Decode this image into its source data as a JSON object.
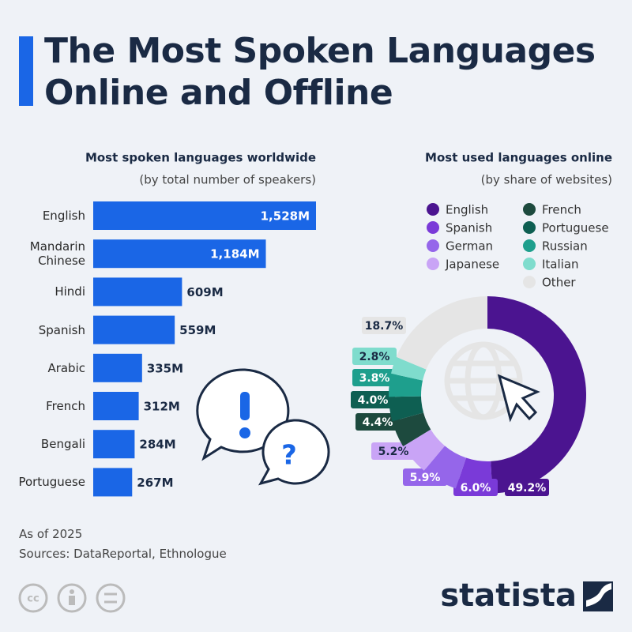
{
  "header": {
    "title": "The Most Spoken Languages Online and Offline"
  },
  "chart_data": [
    {
      "type": "bar",
      "orientation": "horizontal",
      "title": "Most spoken languages worldwide",
      "subtitle": "(by total number of speakers)",
      "categories": [
        "English",
        "Mandarin Chinese",
        "Hindi",
        "Spanish",
        "Arabic",
        "French",
        "Bengali",
        "Portuguese"
      ],
      "values": [
        1528,
        1184,
        609,
        559,
        335,
        312,
        284,
        267
      ],
      "value_labels": [
        "1,528M",
        "1,184M",
        "609M",
        "559M",
        "335M",
        "312M",
        "284M",
        "267M"
      ],
      "color": "#1a66e6"
    },
    {
      "type": "donut",
      "title": "Most used languages online",
      "subtitle": "(by share of websites)",
      "categories": [
        "English",
        "Spanish",
        "German",
        "Japanese",
        "French",
        "Portuguese",
        "Russian",
        "Italian",
        "Other"
      ],
      "values": [
        49.2,
        6.0,
        5.9,
        5.2,
        4.4,
        4.0,
        3.8,
        2.8,
        18.7
      ],
      "value_labels": [
        "49.2%",
        "6.0%",
        "5.9%",
        "5.2%",
        "4.4%",
        "4.0%",
        "3.8%",
        "2.8%",
        "18.7%"
      ],
      "colors": [
        "#4b1490",
        "#7a3ad8",
        "#9566ea",
        "#c9a4f6",
        "#1d4a3e",
        "#0e5f52",
        "#1e9f8d",
        "#7fdccd",
        "#e5e5e5"
      ]
    }
  ],
  "footer": {
    "note": "As of 2025",
    "source": "Sources: DataReportal, Ethnologue",
    "brand": "statista"
  }
}
